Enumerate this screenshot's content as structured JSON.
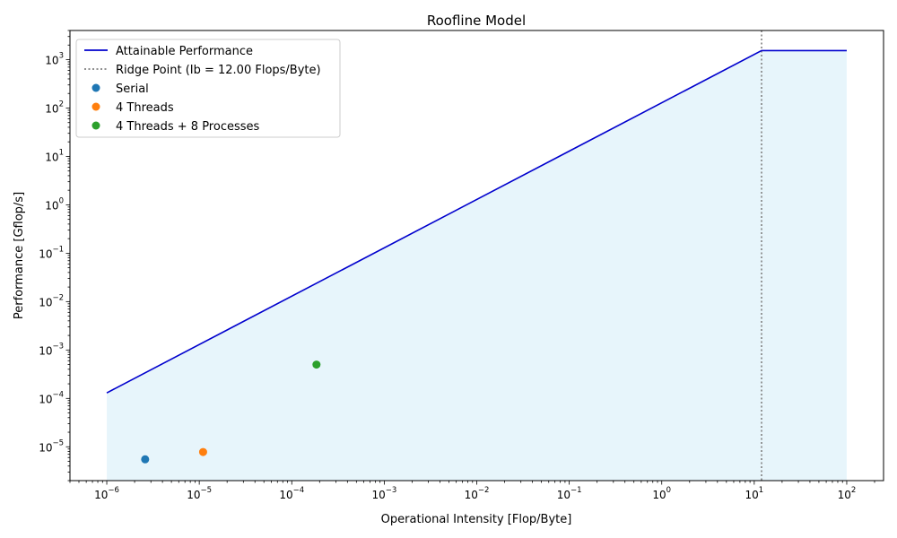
{
  "chart_data": {
    "type": "line",
    "title": "Roofline Model",
    "xlabel": "Operational Intensity [Flop/Byte]",
    "ylabel": "Performance [Gflop/s]",
    "xscale": "log",
    "yscale": "log",
    "xlim": [
      4e-07,
      250
    ],
    "ylim": [
      2e-06,
      4000
    ],
    "x_ticks": [
      {
        "base": "10",
        "exp": "−6"
      },
      {
        "base": "10",
        "exp": "−5"
      },
      {
        "base": "10",
        "exp": "−4"
      },
      {
        "base": "10",
        "exp": "−3"
      },
      {
        "base": "10",
        "exp": "−2"
      },
      {
        "base": "10",
        "exp": "−1"
      },
      {
        "base": "10",
        "exp": "0"
      },
      {
        "base": "10",
        "exp": "1"
      },
      {
        "base": "10",
        "exp": "2"
      }
    ],
    "y_ticks": [
      {
        "base": "10",
        "exp": "−5"
      },
      {
        "base": "10",
        "exp": "−4"
      },
      {
        "base": "10",
        "exp": "−3"
      },
      {
        "base": "10",
        "exp": "−2"
      },
      {
        "base": "10",
        "exp": "−1"
      },
      {
        "base": "10",
        "exp": "0"
      },
      {
        "base": "10",
        "exp": "1"
      },
      {
        "base": "10",
        "exp": "2"
      },
      {
        "base": "10",
        "exp": "3"
      }
    ],
    "grid": false,
    "legend_position": "top-left",
    "roofline": {
      "name": "Attainable Performance",
      "color": "#0000cd",
      "fill_color": "#87ceeb",
      "x": [
        1e-06,
        12.0,
        100
      ],
      "y": [
        0.00013,
        1536,
        1536
      ]
    },
    "ridge": {
      "name": "Ridge Point (Ib = 12.00 Flops/Byte)",
      "x": 12.0,
      "color": "#808080"
    },
    "series": [
      {
        "name": "Serial",
        "color": "#1f77b4",
        "x": 2.6e-06,
        "y": 5.5e-06
      },
      {
        "name": "4 Threads",
        "color": "#ff7f0e",
        "x": 1.1e-05,
        "y": 7.8e-06
      },
      {
        "name": "4 Threads + 8 Processes",
        "color": "#2ca02c",
        "x": 0.000185,
        "y": 0.0005
      }
    ]
  }
}
